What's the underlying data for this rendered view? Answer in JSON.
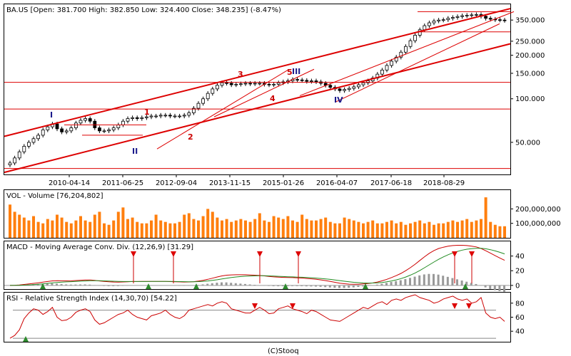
{
  "chart_data": [
    {
      "type": "candlestick",
      "title": "BA.US [Open: 381.700 High: 382.850 Low: 324.400 Close: 348.235] (-8.47%)",
      "x_ticks": [
        "2010-04-14",
        "2011-06-25",
        "2012-09-04",
        "2013-11-15",
        "2015-01-26",
        "2016-04-07",
        "2017-06-18",
        "2018-08-29"
      ],
      "y_scale": "log",
      "y_ticks": [
        "350.000",
        "250.000",
        "200.000",
        "150.000",
        "100.000",
        "50.000"
      ],
      "y_tick_values": [
        350,
        250,
        200,
        150,
        100,
        50
      ],
      "ylim": [
        30,
        450
      ],
      "closes": [
        36,
        39,
        43,
        47,
        50,
        53,
        56,
        61,
        64,
        67,
        62,
        59,
        60,
        63,
        68,
        71,
        73,
        70,
        63,
        60,
        60,
        61,
        63,
        66,
        70,
        73,
        74,
        73,
        74,
        75,
        76,
        76,
        77,
        77,
        76,
        76,
        76,
        77,
        80,
        86,
        93,
        100,
        109,
        117,
        124,
        129,
        128,
        125,
        126,
        127,
        128,
        127,
        128,
        128,
        126,
        125,
        126,
        129,
        131,
        133,
        136,
        135,
        134,
        132,
        133,
        131,
        128,
        124,
        120,
        117,
        114,
        116,
        118,
        121,
        125,
        129,
        133,
        139,
        148,
        158,
        170,
        182,
        194,
        210,
        230,
        252,
        275,
        300,
        320,
        335,
        345,
        350,
        352,
        360,
        365,
        370,
        375,
        378,
        380,
        382,
        372,
        360,
        355,
        352,
        350,
        348
      ],
      "wave_labels": [
        {
          "text": "I",
          "color": "#1a1a8c"
        },
        {
          "text": "1",
          "color": "#cc0000"
        },
        {
          "text": "II",
          "color": "#1a1a8c"
        },
        {
          "text": "2",
          "color": "#cc0000"
        },
        {
          "text": "3",
          "color": "#cc0000"
        },
        {
          "text": "4",
          "color": "#cc0000"
        },
        {
          "text": "5",
          "color": "#cc0000"
        },
        {
          "text": "III",
          "color": "#1a1a8c"
        },
        {
          "text": "IV",
          "color": "#1a1a8c"
        }
      ],
      "line_color": "#dd0000"
    },
    {
      "type": "bar",
      "title": "VOL - Volume [76,204,802]",
      "y_ticks": [
        "200,000,000",
        "100,000,000"
      ],
      "y_tick_values": [
        200000000,
        100000000
      ],
      "ylim": [
        0,
        330000000
      ],
      "values": [
        230,
        180,
        160,
        140,
        120,
        150,
        110,
        100,
        130,
        120,
        160,
        140,
        110,
        100,
        120,
        150,
        120,
        110,
        160,
        180,
        100,
        90,
        120,
        180,
        210,
        130,
        140,
        110,
        100,
        100,
        120,
        160,
        120,
        110,
        100,
        100,
        110,
        160,
        170,
        130,
        120,
        150,
        200,
        180,
        140,
        120,
        130,
        110,
        120,
        130,
        120,
        110,
        130,
        170,
        120,
        110,
        150,
        140,
        130,
        150,
        120,
        110,
        160,
        130,
        120,
        120,
        130,
        140,
        110,
        100,
        100,
        140,
        130,
        120,
        110,
        100,
        110,
        120,
        100,
        100,
        110,
        120,
        100,
        110,
        90,
        100,
        110,
        120,
        100,
        110,
        90,
        100,
        100,
        110,
        120,
        110,
        120,
        130,
        110,
        120,
        130,
        280,
        110,
        90,
        80,
        80
      ],
      "value_unit": "million",
      "bar_color": "#ff7f0e"
    },
    {
      "type": "line",
      "title": "MACD - Moving Average Conv. Div. (12,26,9) [31.29]",
      "y_ticks": [
        "40",
        "20",
        "0"
      ],
      "y_tick_values": [
        40,
        20,
        0
      ],
      "ylim": [
        -5,
        60
      ]
    },
    {
      "type": "line",
      "title": "RSI - Relative Strength Index (14,30,70) [54.22]",
      "y_ticks": [
        "80",
        "60",
        "40"
      ],
      "y_tick_values": [
        80,
        60,
        40
      ],
      "ylim": [
        25,
        95
      ],
      "values": [
        30,
        34,
        42,
        58,
        66,
        72,
        70,
        64,
        68,
        74,
        60,
        55,
        56,
        60,
        67,
        70,
        72,
        68,
        56,
        50,
        52,
        56,
        60,
        64,
        66,
        70,
        64,
        60,
        58,
        56,
        62,
        64,
        66,
        70,
        64,
        60,
        58,
        62,
        70,
        72,
        74,
        76,
        78,
        76,
        80,
        82,
        80,
        72,
        70,
        68,
        66,
        66,
        70,
        74,
        70,
        65,
        66,
        72,
        74,
        76,
        72,
        70,
        68,
        65,
        70,
        68,
        64,
        60,
        56,
        55,
        54,
        58,
        62,
        66,
        70,
        74,
        72,
        76,
        80,
        82,
        78,
        84,
        86,
        84,
        88,
        90,
        92,
        88,
        86,
        84,
        80,
        82,
        86,
        88,
        90,
        86,
        84,
        86,
        80,
        82,
        88,
        66,
        60,
        58,
        60,
        54
      ],
      "band_lines": [
        30,
        70
      ]
    }
  ],
  "footer": "(C)Stooq"
}
